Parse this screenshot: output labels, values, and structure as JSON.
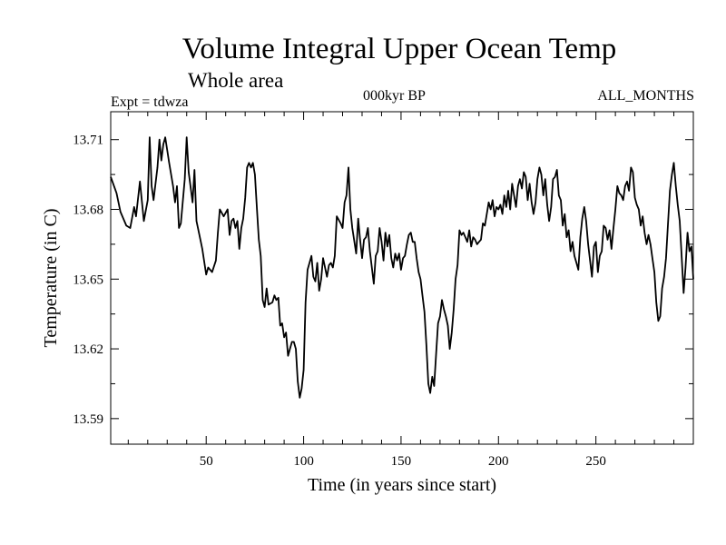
{
  "header": {
    "title": "Volume Integral Upper Ocean Temp",
    "subtitle": "Whole area",
    "experiment": "Expt = tdwza",
    "period": "000kyr BP",
    "months": "ALL_MONTHS"
  },
  "chart_data": {
    "type": "line",
    "title": "Volume Integral Upper Ocean Temp",
    "xlabel": "Time (in years since start)",
    "ylabel": "Temperature (in C)",
    "xlim": [
      1,
      300
    ],
    "ylim": [
      13.579,
      13.722
    ],
    "xticks": [
      50,
      100,
      150,
      200,
      250
    ],
    "yticks": [
      13.59,
      13.62,
      13.65,
      13.68,
      13.71
    ],
    "ytick_labels": [
      "13.59",
      "13.62",
      "13.65",
      "13.68",
      "13.71"
    ],
    "grid": false,
    "series": [
      {
        "color": "#000000",
        "points": [
          [
            1,
            13.694
          ],
          [
            4,
            13.687
          ],
          [
            6,
            13.679
          ],
          [
            9,
            13.673
          ],
          [
            11,
            13.672
          ],
          [
            13,
            13.681
          ],
          [
            14,
            13.677
          ],
          [
            16,
            13.692
          ],
          [
            18,
            13.675
          ],
          [
            20,
            13.684
          ],
          [
            21,
            13.711
          ],
          [
            22,
            13.69
          ],
          [
            23,
            13.684
          ],
          [
            25,
            13.698
          ],
          [
            26,
            13.71
          ],
          [
            27,
            13.701
          ],
          [
            28,
            13.708
          ],
          [
            29,
            13.711
          ],
          [
            31,
            13.7
          ],
          [
            33,
            13.69
          ],
          [
            34,
            13.683
          ],
          [
            35,
            13.69
          ],
          [
            36,
            13.672
          ],
          [
            37,
            13.674
          ],
          [
            39,
            13.693
          ],
          [
            40,
            13.711
          ],
          [
            41,
            13.696
          ],
          [
            43,
            13.683
          ],
          [
            44,
            13.697
          ],
          [
            45,
            13.675
          ],
          [
            47,
            13.667
          ],
          [
            48,
            13.663
          ],
          [
            50,
            13.652
          ],
          [
            51,
            13.655
          ],
          [
            53,
            13.653
          ],
          [
            55,
            13.658
          ],
          [
            56,
            13.67
          ],
          [
            57,
            13.68
          ],
          [
            59,
            13.677
          ],
          [
            61,
            13.68
          ],
          [
            62,
            13.669
          ],
          [
            63,
            13.675
          ],
          [
            64,
            13.676
          ],
          [
            65,
            13.672
          ],
          [
            66,
            13.675
          ],
          [
            67,
            13.663
          ],
          [
            68,
            13.672
          ],
          [
            69,
            13.676
          ],
          [
            70,
            13.685
          ],
          [
            71,
            13.698
          ],
          [
            72,
            13.7
          ],
          [
            73,
            13.698
          ],
          [
            74,
            13.7
          ],
          [
            75,
            13.695
          ],
          [
            76,
            13.681
          ],
          [
            77,
            13.667
          ],
          [
            78,
            13.66
          ],
          [
            79,
            13.641
          ],
          [
            80,
            13.638
          ],
          [
            81,
            13.646
          ],
          [
            82,
            13.639
          ],
          [
            84,
            13.64
          ],
          [
            85,
            13.643
          ],
          [
            86,
            13.641
          ],
          [
            87,
            13.642
          ],
          [
            88,
            13.63
          ],
          [
            89,
            13.631
          ],
          [
            90,
            13.625
          ],
          [
            91,
            13.627
          ],
          [
            92,
            13.617
          ],
          [
            93,
            13.62
          ],
          [
            94,
            13.623
          ],
          [
            95,
            13.623
          ],
          [
            96,
            13.62
          ],
          [
            97,
            13.606
          ],
          [
            98,
            13.599
          ],
          [
            99,
            13.603
          ],
          [
            100,
            13.611
          ],
          [
            101,
            13.64
          ],
          [
            102,
            13.654
          ],
          [
            104,
            13.66
          ],
          [
            105,
            13.651
          ],
          [
            106,
            13.649
          ],
          [
            107,
            13.657
          ],
          [
            108,
            13.645
          ],
          [
            109,
            13.65
          ],
          [
            110,
            13.659
          ],
          [
            112,
            13.651
          ],
          [
            113,
            13.656
          ],
          [
            114,
            13.657
          ],
          [
            115,
            13.655
          ],
          [
            116,
            13.66
          ],
          [
            117,
            13.677
          ],
          [
            119,
            13.674
          ],
          [
            120,
            13.672
          ],
          [
            121,
            13.683
          ],
          [
            122,
            13.686
          ],
          [
            123,
            13.698
          ],
          [
            124,
            13.68
          ],
          [
            125,
            13.672
          ],
          [
            127,
            13.661
          ],
          [
            128,
            13.676
          ],
          [
            129,
            13.667
          ],
          [
            130,
            13.659
          ],
          [
            131,
            13.667
          ],
          [
            132,
            13.668
          ],
          [
            133,
            13.672
          ],
          [
            134,
            13.662
          ],
          [
            136,
            13.648
          ],
          [
            137,
            13.66
          ],
          [
            138,
            13.662
          ],
          [
            139,
            13.672
          ],
          [
            140,
            13.666
          ],
          [
            141,
            13.658
          ],
          [
            142,
            13.67
          ],
          [
            143,
            13.664
          ],
          [
            144,
            13.669
          ],
          [
            145,
            13.659
          ],
          [
            146,
            13.655
          ],
          [
            147,
            13.661
          ],
          [
            148,
            13.658
          ],
          [
            149,
            13.661
          ],
          [
            150,
            13.654
          ],
          [
            151,
            13.659
          ],
          [
            152,
            13.66
          ],
          [
            153,
            13.665
          ],
          [
            154,
            13.669
          ],
          [
            155,
            13.67
          ],
          [
            156,
            13.666
          ],
          [
            157,
            13.666
          ],
          [
            158,
            13.659
          ],
          [
            159,
            13.653
          ],
          [
            160,
            13.65
          ],
          [
            161,
            13.643
          ],
          [
            162,
            13.636
          ],
          [
            163,
            13.622
          ],
          [
            164,
            13.605
          ],
          [
            165,
            13.601
          ],
          [
            166,
            13.608
          ],
          [
            167,
            13.604
          ],
          [
            168,
            13.618
          ],
          [
            169,
            13.631
          ],
          [
            170,
            13.634
          ],
          [
            171,
            13.641
          ],
          [
            172,
            13.637
          ],
          [
            173,
            13.634
          ],
          [
            174,
            13.63
          ],
          [
            175,
            13.62
          ],
          [
            176,
            13.627
          ],
          [
            177,
            13.637
          ],
          [
            178,
            13.65
          ],
          [
            179,
            13.656
          ],
          [
            180,
            13.671
          ],
          [
            181,
            13.669
          ],
          [
            182,
            13.67
          ],
          [
            183,
            13.668
          ],
          [
            184,
            13.666
          ],
          [
            185,
            13.671
          ],
          [
            186,
            13.664
          ],
          [
            187,
            13.668
          ],
          [
            188,
            13.667
          ],
          [
            189,
            13.665
          ],
          [
            190,
            13.666
          ],
          [
            191,
            13.667
          ],
          [
            192,
            13.674
          ],
          [
            193,
            13.673
          ],
          [
            194,
            13.678
          ],
          [
            195,
            13.683
          ],
          [
            196,
            13.68
          ],
          [
            197,
            13.684
          ],
          [
            198,
            13.677
          ],
          [
            199,
            13.681
          ],
          [
            200,
            13.68
          ],
          [
            201,
            13.682
          ],
          [
            202,
            13.678
          ],
          [
            203,
            13.686
          ],
          [
            204,
            13.681
          ],
          [
            205,
            13.688
          ],
          [
            206,
            13.68
          ],
          [
            207,
            13.691
          ],
          [
            208,
            13.686
          ],
          [
            209,
            13.681
          ],
          [
            210,
            13.69
          ],
          [
            211,
            13.693
          ],
          [
            212,
            13.689
          ],
          [
            213,
            13.696
          ],
          [
            214,
            13.694
          ],
          [
            215,
            13.684
          ],
          [
            216,
            13.691
          ],
          [
            217,
            13.683
          ],
          [
            218,
            13.678
          ],
          [
            219,
            13.683
          ],
          [
            220,
            13.693
          ],
          [
            221,
            13.698
          ],
          [
            222,
            13.695
          ],
          [
            223,
            13.686
          ],
          [
            224,
            13.693
          ],
          [
            225,
            13.682
          ],
          [
            226,
            13.675
          ],
          [
            227,
            13.681
          ],
          [
            228,
            13.693
          ],
          [
            229,
            13.694
          ],
          [
            230,
            13.697
          ],
          [
            231,
            13.686
          ],
          [
            232,
            13.684
          ],
          [
            233,
            13.673
          ],
          [
            234,
            13.678
          ],
          [
            235,
            13.668
          ],
          [
            236,
            13.671
          ],
          [
            237,
            13.662
          ],
          [
            238,
            13.666
          ],
          [
            239,
            13.66
          ],
          [
            240,
            13.657
          ],
          [
            241,
            13.654
          ],
          [
            242,
            13.668
          ],
          [
            243,
            13.676
          ],
          [
            244,
            13.681
          ],
          [
            245,
            13.675
          ],
          [
            246,
            13.665
          ],
          [
            247,
            13.658
          ],
          [
            248,
            13.651
          ],
          [
            249,
            13.664
          ],
          [
            250,
            13.666
          ],
          [
            251,
            13.653
          ],
          [
            252,
            13.66
          ],
          [
            253,
            13.662
          ],
          [
            254,
            13.673
          ],
          [
            255,
            13.672
          ],
          [
            256,
            13.667
          ],
          [
            257,
            13.671
          ],
          [
            258,
            13.663
          ],
          [
            259,
            13.672
          ],
          [
            260,
            13.68
          ],
          [
            261,
            13.69
          ],
          [
            262,
            13.687
          ],
          [
            263,
            13.686
          ],
          [
            264,
            13.684
          ],
          [
            265,
            13.69
          ],
          [
            266,
            13.692
          ],
          [
            267,
            13.688
          ],
          [
            268,
            13.698
          ],
          [
            269,
            13.696
          ],
          [
            270,
            13.685
          ],
          [
            271,
            13.682
          ],
          [
            272,
            13.68
          ],
          [
            273,
            13.673
          ],
          [
            274,
            13.677
          ],
          [
            275,
            13.67
          ],
          [
            276,
            13.665
          ],
          [
            277,
            13.669
          ],
          [
            278,
            13.665
          ],
          [
            279,
            13.659
          ],
          [
            280,
            13.653
          ],
          [
            281,
            13.64
          ],
          [
            282,
            13.632
          ],
          [
            283,
            13.634
          ],
          [
            284,
            13.646
          ],
          [
            285,
            13.651
          ],
          [
            286,
            13.659
          ],
          [
            287,
            13.674
          ],
          [
            288,
            13.688
          ],
          [
            289,
            13.695
          ],
          [
            290,
            13.7
          ],
          [
            291,
            13.69
          ],
          [
            292,
            13.682
          ],
          [
            293,
            13.675
          ],
          [
            294,
            13.66
          ],
          [
            295,
            13.644
          ],
          [
            296,
            13.655
          ],
          [
            297,
            13.67
          ],
          [
            298,
            13.662
          ],
          [
            299,
            13.664
          ],
          [
            300,
            13.65
          ]
        ]
      }
    ]
  }
}
